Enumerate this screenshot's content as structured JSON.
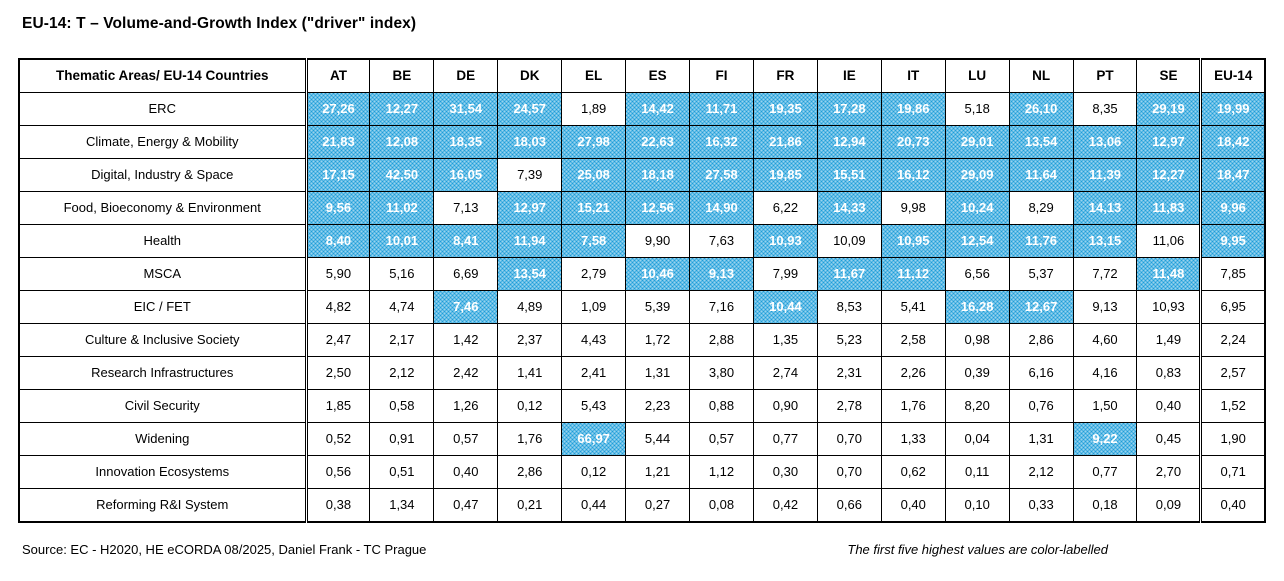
{
  "title": "EU-14: T – Volume-and-Growth Index (\"driver\" index)",
  "footer": {
    "source": "Source: EC -  H2020, HE eCORDA 08/2025, Daniel Frank - TC Prague",
    "note": "The first five highest values are color-labelled"
  },
  "colors": {
    "highlight_blue": "#1d9dd9",
    "highlight_text": "#ffffff",
    "border": "#000000"
  },
  "chart_data": {
    "type": "table",
    "title": "EU-14: T – Volume-and-Growth Index (\"driver\" index)",
    "corner_header": "Thematic Areas/ EU-14 Countries",
    "columns": [
      "AT",
      "BE",
      "DE",
      "DK",
      "EL",
      "ES",
      "FI",
      "FR",
      "IE",
      "IT",
      "LU",
      "NL",
      "PT",
      "SE",
      "EU-14"
    ],
    "highlight_rule": "top five highest values in each column are color-labelled blue",
    "rows": [
      {
        "label": "ERC",
        "values": [
          "27,26",
          "12,27",
          "31,54",
          "24,57",
          "1,89",
          "14,42",
          "11,71",
          "19,35",
          "17,28",
          "19,86",
          "5,18",
          "26,10",
          "8,35",
          "29,19",
          "19,99"
        ],
        "highlights": [
          1,
          1,
          1,
          1,
          0,
          1,
          1,
          1,
          1,
          1,
          0,
          1,
          0,
          1,
          1
        ]
      },
      {
        "label": "Climate, Energy & Mobility",
        "values": [
          "21,83",
          "12,08",
          "18,35",
          "18,03",
          "27,98",
          "22,63",
          "16,32",
          "21,86",
          "12,94",
          "20,73",
          "29,01",
          "13,54",
          "13,06",
          "12,97",
          "18,42"
        ],
        "highlights": [
          1,
          1,
          1,
          1,
          1,
          1,
          1,
          1,
          1,
          1,
          1,
          1,
          1,
          1,
          1
        ]
      },
      {
        "label": "Digital, Industry & Space",
        "values": [
          "17,15",
          "42,50",
          "16,05",
          "7,39",
          "25,08",
          "18,18",
          "27,58",
          "19,85",
          "15,51",
          "16,12",
          "29,09",
          "11,64",
          "11,39",
          "12,27",
          "18,47"
        ],
        "highlights": [
          1,
          1,
          1,
          0,
          1,
          1,
          1,
          1,
          1,
          1,
          1,
          1,
          1,
          1,
          1
        ]
      },
      {
        "label": "Food, Bioeconomy & Environment",
        "values": [
          "9,56",
          "11,02",
          "7,13",
          "12,97",
          "15,21",
          "12,56",
          "14,90",
          "6,22",
          "14,33",
          "9,98",
          "10,24",
          "8,29",
          "14,13",
          "11,83",
          "9,96"
        ],
        "highlights": [
          1,
          1,
          0,
          1,
          1,
          1,
          1,
          0,
          1,
          0,
          1,
          0,
          1,
          1,
          1
        ]
      },
      {
        "label": "Health",
        "values": [
          "8,40",
          "10,01",
          "8,41",
          "11,94",
          "7,58",
          "9,90",
          "7,63",
          "10,93",
          "10,09",
          "10,95",
          "12,54",
          "11,76",
          "13,15",
          "11,06",
          "9,95"
        ],
        "highlights": [
          1,
          1,
          1,
          1,
          1,
          0,
          0,
          1,
          0,
          1,
          1,
          1,
          1,
          0,
          1
        ]
      },
      {
        "label": "MSCA",
        "values": [
          "5,90",
          "5,16",
          "6,69",
          "13,54",
          "2,79",
          "10,46",
          "9,13",
          "7,99",
          "11,67",
          "11,12",
          "6,56",
          "5,37",
          "7,72",
          "11,48",
          "7,85"
        ],
        "highlights": [
          0,
          0,
          0,
          1,
          0,
          1,
          1,
          0,
          1,
          1,
          0,
          0,
          0,
          1,
          0
        ]
      },
      {
        "label": "EIC / FET",
        "values": [
          "4,82",
          "4,74",
          "7,46",
          "4,89",
          "1,09",
          "5,39",
          "7,16",
          "10,44",
          "8,53",
          "5,41",
          "16,28",
          "12,67",
          "9,13",
          "10,93",
          "6,95"
        ],
        "highlights": [
          0,
          0,
          1,
          0,
          0,
          0,
          0,
          1,
          0,
          0,
          1,
          1,
          0,
          0,
          0
        ]
      },
      {
        "label": "Culture & Inclusive Society",
        "values": [
          "2,47",
          "2,17",
          "1,42",
          "2,37",
          "4,43",
          "1,72",
          "2,88",
          "1,35",
          "5,23",
          "2,58",
          "0,98",
          "2,86",
          "4,60",
          "1,49",
          "2,24"
        ],
        "highlights": [
          0,
          0,
          0,
          0,
          0,
          0,
          0,
          0,
          0,
          0,
          0,
          0,
          0,
          0,
          0
        ]
      },
      {
        "label": "Research Infrastructures",
        "values": [
          "2,50",
          "2,12",
          "2,42",
          "1,41",
          "2,41",
          "1,31",
          "3,80",
          "2,74",
          "2,31",
          "2,26",
          "0,39",
          "6,16",
          "4,16",
          "0,83",
          "2,57"
        ],
        "highlights": [
          0,
          0,
          0,
          0,
          0,
          0,
          0,
          0,
          0,
          0,
          0,
          0,
          0,
          0,
          0
        ]
      },
      {
        "label": "Civil Security",
        "values": [
          "1,85",
          "0,58",
          "1,26",
          "0,12",
          "5,43",
          "2,23",
          "0,88",
          "0,90",
          "2,78",
          "1,76",
          "8,20",
          "0,76",
          "1,50",
          "0,40",
          "1,52"
        ],
        "highlights": [
          0,
          0,
          0,
          0,
          0,
          0,
          0,
          0,
          0,
          0,
          0,
          0,
          0,
          0,
          0
        ]
      },
      {
        "label": "Widening",
        "values": [
          "0,52",
          "0,91",
          "0,57",
          "1,76",
          "66,97",
          "5,44",
          "0,57",
          "0,77",
          "0,70",
          "1,33",
          "0,04",
          "1,31",
          "9,22",
          "0,45",
          "1,90"
        ],
        "highlights": [
          0,
          0,
          0,
          0,
          1,
          0,
          0,
          0,
          0,
          0,
          0,
          0,
          1,
          0,
          0
        ]
      },
      {
        "label": "Innovation Ecosystems",
        "values": [
          "0,56",
          "0,51",
          "0,40",
          "2,86",
          "0,12",
          "1,21",
          "1,12",
          "0,30",
          "0,70",
          "0,62",
          "0,11",
          "2,12",
          "0,77",
          "2,70",
          "0,71"
        ],
        "highlights": [
          0,
          0,
          0,
          0,
          0,
          0,
          0,
          0,
          0,
          0,
          0,
          0,
          0,
          0,
          0
        ]
      },
      {
        "label": "Reforming R&I System",
        "values": [
          "0,38",
          "1,34",
          "0,47",
          "0,21",
          "0,44",
          "0,27",
          "0,08",
          "0,42",
          "0,66",
          "0,40",
          "0,10",
          "0,33",
          "0,18",
          "0,09",
          "0,40"
        ],
        "highlights": [
          0,
          0,
          0,
          0,
          0,
          0,
          0,
          0,
          0,
          0,
          0,
          0,
          0,
          0,
          0
        ]
      }
    ]
  }
}
